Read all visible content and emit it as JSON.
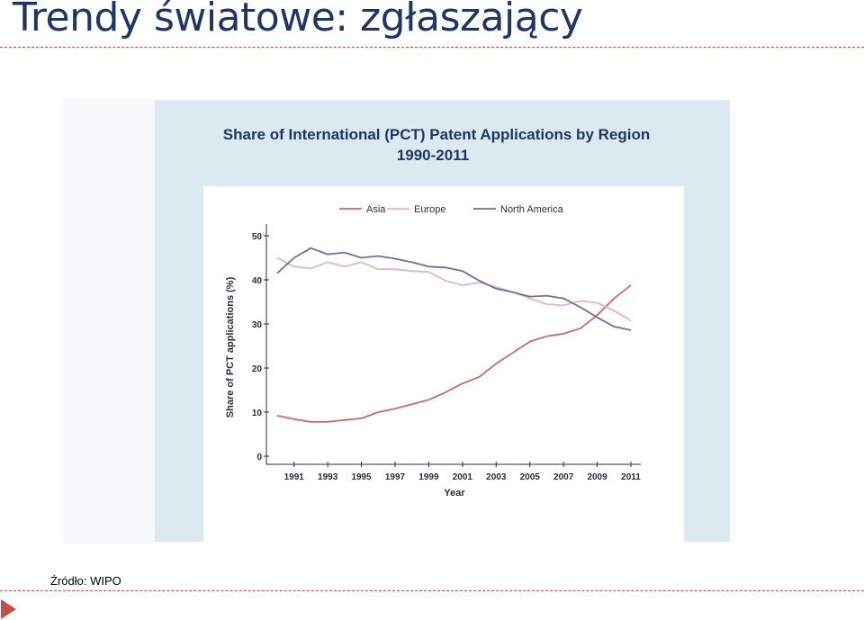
{
  "slide": {
    "title": "Trendy światowe: zgłaszający",
    "source": "Źródło: WIPO"
  },
  "colors": {
    "accent_red": "#c0504d",
    "title_blue": "#1f3566",
    "panel_bg": "#dbe9f1",
    "asia": "#c96a72",
    "europe": "#e2b6c0",
    "north_america": "#6f6f9e"
  },
  "chart_data": {
    "type": "line",
    "title": "Share of International (PCT) Patent Applications by Region",
    "subtitle": "1990-2011",
    "xlabel": "Year",
    "ylabel": "Share of PCT applications (%)",
    "x": [
      1990,
      1991,
      1992,
      1993,
      1994,
      1995,
      1996,
      1997,
      1998,
      1999,
      2000,
      2001,
      2002,
      2003,
      2004,
      2005,
      2006,
      2007,
      2008,
      2009,
      2010,
      2011
    ],
    "xticks": [
      1991,
      1993,
      1995,
      1997,
      1999,
      2001,
      2003,
      2005,
      2007,
      2009,
      2011
    ],
    "yticks": [
      0,
      10,
      20,
      30,
      40,
      50
    ],
    "ylim": [
      0,
      50
    ],
    "legend": "top",
    "grid": false,
    "series": [
      {
        "name": "Asia",
        "color": "#c96a72",
        "values": [
          9.2,
          8.4,
          7.8,
          7.8,
          8.2,
          8.6,
          10.0,
          10.8,
          11.8,
          12.8,
          14.5,
          16.5,
          18.0,
          21.0,
          23.5,
          26.0,
          27.2,
          27.8,
          29.0,
          32.0,
          35.8,
          38.8
        ]
      },
      {
        "name": "Europe",
        "color": "#e2b6c0",
        "values": [
          45.0,
          43.0,
          42.6,
          44.0,
          43.0,
          44.0,
          42.4,
          42.4,
          42.0,
          41.8,
          39.8,
          38.8,
          39.4,
          38.4,
          37.2,
          35.8,
          34.5,
          34.2,
          35.2,
          34.8,
          33.0,
          30.8
        ]
      },
      {
        "name": "North America",
        "color": "#6f6f9e",
        "values": [
          41.5,
          45.0,
          47.2,
          45.8,
          46.2,
          45.0,
          45.4,
          44.8,
          44.0,
          43.0,
          42.8,
          42.0,
          39.8,
          38.0,
          37.2,
          36.2,
          36.4,
          35.8,
          33.8,
          31.5,
          29.4,
          28.6
        ]
      }
    ]
  }
}
